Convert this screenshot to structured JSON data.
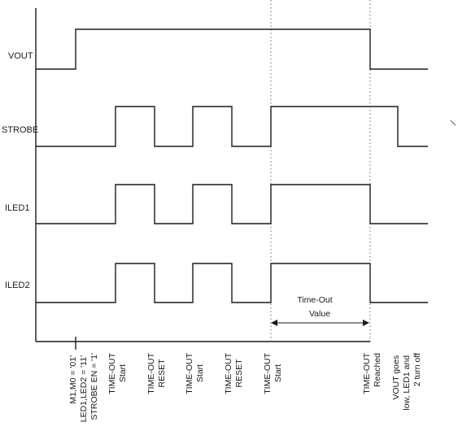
{
  "signals": [
    {
      "name": "VOUT"
    },
    {
      "name": "STROBE"
    },
    {
      "name": "ILED1"
    },
    {
      "name": "ILED2"
    }
  ],
  "timeout_annotation": {
    "line1": "Time-Out",
    "line2": "Value"
  },
  "event_labels": [
    {
      "lines": [
        "M1,M0 = '01'",
        "LED1,LED2 = '11'",
        "STROBE EN = '1'"
      ]
    },
    {
      "lines": [
        "TIME-OUT",
        "Start"
      ]
    },
    {
      "lines": [
        "TIME-OUT",
        "RESET"
      ]
    },
    {
      "lines": [
        "TIME-OUT",
        "Start"
      ]
    },
    {
      "lines": [
        "TIME-OUT",
        "RESET"
      ]
    },
    {
      "lines": [
        "TIME-OUT",
        "Start"
      ]
    },
    {
      "lines": [
        "TIME-OUT",
        "Reached"
      ]
    },
    {
      "lines": [
        "VOUT goes",
        "low, LED1 and",
        "2 turn off"
      ]
    }
  ],
  "colors": {
    "line": "#1a1a1a",
    "dotted": "#6a6a6a",
    "background": "#ffffff"
  }
}
